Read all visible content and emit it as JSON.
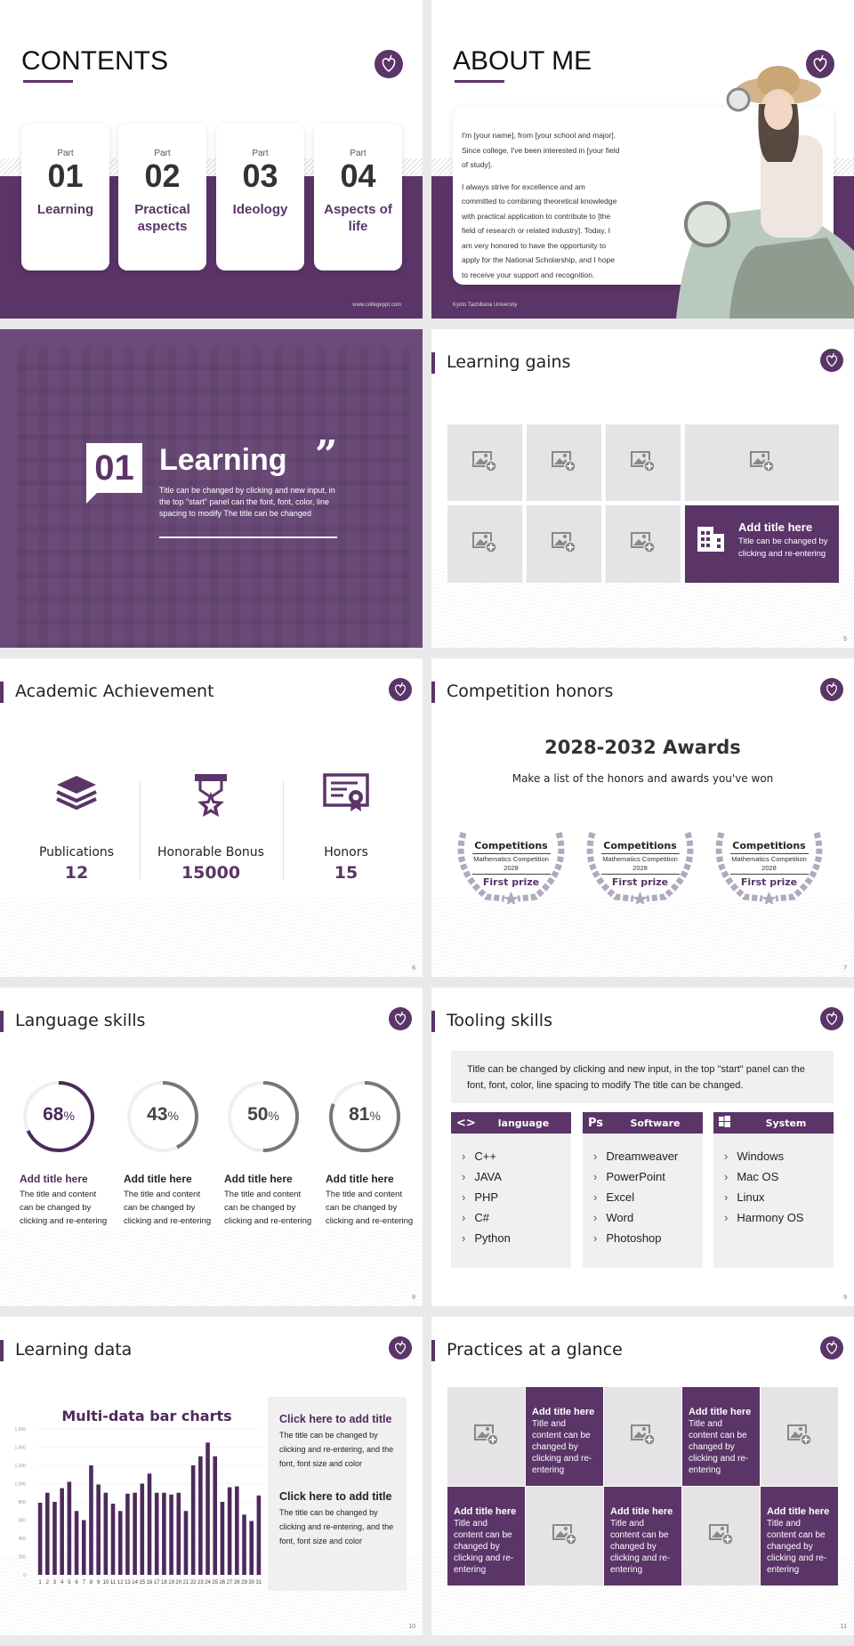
{
  "colors": {
    "accent": "#5b3468",
    "light_gray": "#e5e3e5"
  },
  "s1": {
    "title": "CONTENTS",
    "part_label": "Part",
    "parts": [
      {
        "num": "01",
        "label": "Learning"
      },
      {
        "num": "02",
        "label": "Practical aspects"
      },
      {
        "num": "03",
        "label": "Ideology"
      },
      {
        "num": "04",
        "label": "Aspects of life"
      }
    ],
    "footer": "www.collegeppt.com"
  },
  "s2": {
    "title": "ABOUT ME",
    "p1": "I'm [your name], from [your school and major]. Since college, I've been interested in [your field of study].",
    "p2": "I always strive for excellence and am committed to combining theoretical knowledge with practical application to contribute to [the field of research or related industry]. Today, I am very honored to have the opportunity to apply for the National Scholarship, and I hope to receive your support and recognition.",
    "footer": "Kyoto Tachibana University"
  },
  "s3": {
    "num": "01",
    "title": "Learning",
    "quote": "”",
    "text": "Title can be changed by clicking and new input, in the top \"start\" panel can the font, font, color, line spacing to modify The title can be changed"
  },
  "s4": {
    "title": "Learning gains",
    "feature_title": "Add title here",
    "feature_text": "Title can be changed by clicking and re-entering",
    "page": "5",
    "icon": "image-add-icon"
  },
  "s5": {
    "title": "Academic Achievement",
    "items": [
      {
        "label": "Publications",
        "value": "12",
        "icon": "books-icon"
      },
      {
        "label": "Honorable Bonus",
        "value": "15000",
        "icon": "medal-icon"
      },
      {
        "label": "Honors",
        "value": "15",
        "icon": "certificate-icon"
      }
    ],
    "page": "6"
  },
  "s6": {
    "title": "Competition honors",
    "heading": "2028-2032 Awards",
    "sub": "Make a list of the honors and awards you've won",
    "awards": [
      {
        "cat": "Competitions",
        "name": "Mathematics Competition 2028",
        "prize": "First prize"
      },
      {
        "cat": "Competitions",
        "name": "Mathematics Competition 2028",
        "prize": "First prize"
      },
      {
        "cat": "Competitions",
        "name": "Mathematics Competition 2028",
        "prize": "First prize"
      }
    ],
    "page": "7"
  },
  "s7": {
    "title": "Language skills",
    "pct": "%",
    "skills": [
      {
        "value": 68,
        "text_value": "68",
        "title": "Add title here",
        "text": "The title and content can be changed by clicking and re-entering"
      },
      {
        "value": 43,
        "text_value": "43",
        "title": "Add title here",
        "text": "The title and content can be changed by clicking and re-entering"
      },
      {
        "value": 50,
        "text_value": "50",
        "title": "Add title here",
        "text": "The title and content can be changed by clicking and re-entering"
      },
      {
        "value": 81,
        "text_value": "81",
        "title": "Add title here",
        "text": "The title and content can be changed by clicking and re-entering"
      }
    ],
    "page": "8"
  },
  "s8": {
    "title": "Tooling skills",
    "intro": "Title can be changed by clicking and new input, in the top \"start\" panel can the font, font, color, line spacing to modify The title can be changed.",
    "columns": [
      {
        "icon": "<>",
        "name": "language",
        "items": [
          "C++",
          "JAVA",
          "PHP",
          "C#",
          "Python"
        ]
      },
      {
        "icon": "Ps",
        "name": "Software",
        "items": [
          "Dreamweaver",
          "PowerPoint",
          "Excel",
          "Word",
          "Photoshop"
        ]
      },
      {
        "icon": "windows",
        "name": "System",
        "items": [
          "Windows",
          "Mac OS",
          "Linux",
          "Harmony OS"
        ]
      }
    ],
    "page": "9"
  },
  "s9": {
    "title": "Learning data",
    "blocks": [
      {
        "title": "Click here to add title",
        "text": "The title can be changed by clicking and re-entering, and the font, font size and color"
      },
      {
        "title": "Click here to add title",
        "text": "The title can be changed by clicking and re-entering, and the font, font size and color"
      }
    ],
    "page": "10"
  },
  "chart_data": {
    "type": "bar",
    "title": "Multi-data bar charts",
    "categories": [
      "1",
      "2",
      "3",
      "4",
      "5",
      "6",
      "7",
      "8",
      "9",
      "10",
      "11",
      "12",
      "13",
      "14",
      "15",
      "16",
      "17",
      "18",
      "19",
      "20",
      "21",
      "22",
      "23",
      "24",
      "25",
      "26",
      "27",
      "28",
      "29",
      "30",
      "31"
    ],
    "values": [
      790,
      900,
      800,
      950,
      1020,
      700,
      600,
      1200,
      990,
      900,
      780,
      700,
      890,
      900,
      1000,
      1110,
      900,
      900,
      880,
      900,
      700,
      1200,
      1300,
      1450,
      1300,
      800,
      960,
      970,
      660,
      590,
      870
    ],
    "yticks": [
      "0",
      "200",
      "400",
      "600",
      "800",
      "1,000",
      "1,200",
      "1,400",
      "1,600"
    ],
    "ylim": [
      0,
      1600
    ],
    "grid": true,
    "color": "#4e2a5c"
  },
  "s10": {
    "title": "Practices at a glance",
    "tile_title": "Add title here",
    "tile_text": "Title and content can be changed by clicking and re-entering",
    "page": "11"
  }
}
